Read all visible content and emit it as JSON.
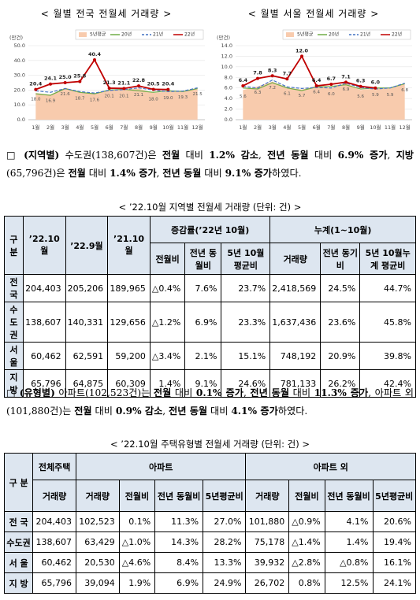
{
  "chart_data": [
    {
      "type": "line",
      "title": "< 월별 전국 전월세 거래량 >",
      "y_label": "(만건)",
      "categories": [
        "1월",
        "2월",
        "3월",
        "4월",
        "5월",
        "6월",
        "7월",
        "8월",
        "9월",
        "10월",
        "11월",
        "12월"
      ],
      "ylim": [
        0,
        50
      ],
      "yticks": [
        {
          "value": 0,
          "label": "0.0"
        },
        {
          "value": 10,
          "label": "10.0"
        },
        {
          "value": 20,
          "label": "20.0"
        },
        {
          "value": 30,
          "label": "30.0"
        },
        {
          "value": 40,
          "label": "40.0"
        },
        {
          "value": 50,
          "label": "50.0"
        }
      ],
      "grid": true,
      "series": [
        {
          "name": "5년평균",
          "color": "#f8cbad",
          "area": true,
          "values": [
            18.0,
            16.9,
            21.6,
            18.7,
            17.6,
            20.1,
            20.1,
            21.1,
            18.0,
            19.0,
            19.3,
            21.5
          ],
          "value_labels": [
            "18.0",
            "16.9",
            "21.6",
            "18.7",
            "17.6",
            "20.1",
            "20.1",
            "21.1",
            "18.0",
            "19.0",
            "19.3",
            "21.5"
          ]
        },
        {
          "name": "20년",
          "color": "#70ad47",
          "values": [
            17.5,
            16.5,
            21.0,
            18.5,
            17.5,
            20.0,
            20.5,
            19.5,
            18.5,
            19.5,
            19.0,
            21.0
          ]
        },
        {
          "name": "21년",
          "color": "#4472c4",
          "dashed": true,
          "values": [
            19.5,
            18.5,
            21.0,
            19.0,
            18.0,
            19.8,
            20.3,
            21.5,
            20.0,
            19.0,
            19.3,
            21.5
          ]
        },
        {
          "name": "22년",
          "color": "#c00000",
          "markers": true,
          "values": [
            20.4,
            24.1,
            25.0,
            25.8,
            40.4,
            21.3,
            21.1,
            22.8,
            20.5,
            20.4,
            null,
            null
          ],
          "value_labels": [
            "20.4",
            "24.1",
            "25.0",
            "25.8",
            "40.4",
            "21.3",
            "21.1",
            "22.8",
            "20.5",
            "20.4",
            null,
            null
          ]
        }
      ]
    },
    {
      "type": "line",
      "title": "< 월별 서울 전월세 거래량 >",
      "y_label": "(만건)",
      "categories": [
        "1월",
        "2월",
        "3월",
        "4월",
        "5월",
        "6월",
        "7월",
        "8월",
        "9월",
        "10월",
        "11월",
        "12월"
      ],
      "ylim": [
        0,
        14
      ],
      "yticks": [
        {
          "value": 0,
          "label": "0.0"
        },
        {
          "value": 2,
          "label": "2.0"
        },
        {
          "value": 4,
          "label": "4.0"
        },
        {
          "value": 6,
          "label": "6.0"
        },
        {
          "value": 8,
          "label": "8.0"
        },
        {
          "value": 10,
          "label": "10.0"
        },
        {
          "value": 12,
          "label": "12.0"
        },
        {
          "value": 14,
          "label": "14.0"
        }
      ],
      "grid": true,
      "series": [
        {
          "name": "5년평균",
          "color": "#f8cbad",
          "area": true,
          "values": [
            5.6,
            6.3,
            7.2,
            6.1,
            5.7,
            6.4,
            6.0,
            6.9,
            5.6,
            5.9,
            5.9,
            6.8
          ],
          "value_labels": [
            "5.6",
            "6.3",
            "7.2",
            "6.1",
            "5.7",
            "6.4",
            "6.0",
            "6.9",
            "5.6",
            "5.9",
            "5.9",
            "6.8"
          ]
        },
        {
          "name": "20년",
          "color": "#70ad47",
          "values": [
            6.0,
            5.8,
            7.0,
            6.0,
            5.5,
            6.2,
            6.3,
            6.6,
            5.8,
            6.0,
            6.0,
            6.8
          ]
        },
        {
          "name": "21년",
          "color": "#4472c4",
          "dashed": true,
          "values": [
            6.3,
            6.0,
            7.5,
            6.2,
            5.9,
            6.1,
            6.0,
            6.9,
            6.1,
            5.8,
            6.0,
            6.9
          ]
        },
        {
          "name": "22년",
          "color": "#c00000",
          "markers": true,
          "values": [
            6.4,
            7.8,
            8.3,
            7.7,
            12.0,
            6.4,
            6.7,
            7.1,
            6.3,
            6.0,
            null,
            null
          ],
          "value_labels": [
            "6.4",
            "7.8",
            "8.3",
            "7.7",
            "12.0",
            "6.4",
            "6.7",
            "7.1",
            "6.3",
            "6.0",
            null,
            null
          ]
        }
      ]
    }
  ],
  "paragraph1": {
    "runs": [
      {
        "text": "□ "
      },
      {
        "text": "(지역별)",
        "bold": true
      },
      {
        "text": " 수도권(138,607건)은 "
      },
      {
        "text": "전월",
        "bold": true
      },
      {
        "text": " 대비 "
      },
      {
        "text": "1.2% 감소",
        "bold": true
      },
      {
        "text": ", "
      },
      {
        "text": "전년 동월",
        "bold": true
      },
      {
        "text": " 대비 "
      },
      {
        "text": "6.9% 증가",
        "bold": true
      },
      {
        "text": ", "
      },
      {
        "text": "지방",
        "bold": true
      },
      {
        "text": "(65,796건)은 "
      },
      {
        "text": "전월",
        "bold": true
      },
      {
        "text": " 대비 "
      },
      {
        "text": "1.4% 증가",
        "bold": true
      },
      {
        "text": ", "
      },
      {
        "text": "전년 동월",
        "bold": true
      },
      {
        "text": " 대비 "
      },
      {
        "text": "9.1% 증가",
        "bold": true
      },
      {
        "text": "하였다."
      }
    ]
  },
  "table1": {
    "title": "< ’22.10월 지역별 전월세 거래량 (단위: 건) >",
    "columns": [
      "구 분",
      "’22.10월",
      "’22.9월",
      "’21.10월"
    ],
    "groups": [
      {
        "label": "증감률(’22년 10월)",
        "columns": [
          "전월비",
          "전년 동월비",
          "5년 10월 평균비"
        ]
      },
      {
        "label": "누계(1~10월)",
        "columns": [
          "거래량",
          "전년 동기비",
          "5년 10월누계 평균비"
        ]
      }
    ],
    "rows": [
      [
        "전 국",
        "204,403",
        "205,206",
        "189,965",
        "△0.4%",
        "7.6%",
        "23.7%",
        "2,418,569",
        "24.5%",
        "44.7%"
      ],
      [
        "수도권",
        "138,607",
        "140,331",
        "129,656",
        "△1.2%",
        "6.9%",
        "23.3%",
        "1,637,436",
        "23.6%",
        "45.8%"
      ],
      [
        "서 울",
        "60,462",
        "62,591",
        "59,200",
        "△3.4%",
        "2.1%",
        "15.1%",
        "748,192",
        "20.9%",
        "39.8%"
      ],
      [
        "지 방",
        "65,796",
        "64,875",
        "60,309",
        "1.4%",
        "9.1%",
        "24.6%",
        "781,133",
        "26.2%",
        "42.4%"
      ]
    ]
  },
  "paragraph2": {
    "runs": [
      {
        "text": "□ "
      },
      {
        "text": "(유형별)",
        "bold": true
      },
      {
        "text": " 아파트(102,523건)는 "
      },
      {
        "text": "전월",
        "bold": true
      },
      {
        "text": " 대비 "
      },
      {
        "text": "0.1% 증가",
        "bold": true
      },
      {
        "text": ", "
      },
      {
        "text": "전년 동월",
        "bold": true
      },
      {
        "text": " 대비 "
      },
      {
        "text": "11.3% 증가",
        "bold": true
      },
      {
        "text": ", 아파트 외(101,880건)는 "
      },
      {
        "text": "전월",
        "bold": true
      },
      {
        "text": " 대비 "
      },
      {
        "text": "0.9% 감소",
        "bold": true
      },
      {
        "text": ", "
      },
      {
        "text": "전년 동월",
        "bold": true
      },
      {
        "text": " 대비 "
      },
      {
        "text": "4.1% 증가",
        "bold": true
      },
      {
        "text": "하였다."
      }
    ]
  },
  "table2": {
    "title": "< ’22.10월 주택유형별 전월세 거래량 (단위: 건) >",
    "columns": [
      "구 분"
    ],
    "groups": [
      {
        "label": "전체주택",
        "columns": [
          "거래량"
        ]
      },
      {
        "label": "아파트",
        "columns": [
          "거래량",
          "전월비",
          "전년 동월비",
          "5년평균비"
        ]
      },
      {
        "label": "아파트 외",
        "columns": [
          "거래량",
          "전월비",
          "전년 동월비",
          "5년평균비"
        ]
      }
    ],
    "rows": [
      [
        "전 국",
        "204,403",
        "102,523",
        "0.1%",
        "11.3%",
        "27.0%",
        "101,880",
        "△0.9%",
        "4.1%",
        "20.6%"
      ],
      [
        "수도권",
        "138,607",
        "63,429",
        "△1.0%",
        "14.3%",
        "28.2%",
        "75,178",
        "△1.4%",
        "1.4%",
        "19.4%"
      ],
      [
        "서 울",
        "60,462",
        "20,530",
        "△4.6%",
        "8.4%",
        "13.3%",
        "39,932",
        "△2.8%",
        "△0.8%",
        "16.1%"
      ],
      [
        "지 방",
        "65,796",
        "39,094",
        "1.9%",
        "6.9%",
        "24.9%",
        "26,702",
        "0.8%",
        "12.5%",
        "24.1%"
      ]
    ]
  }
}
